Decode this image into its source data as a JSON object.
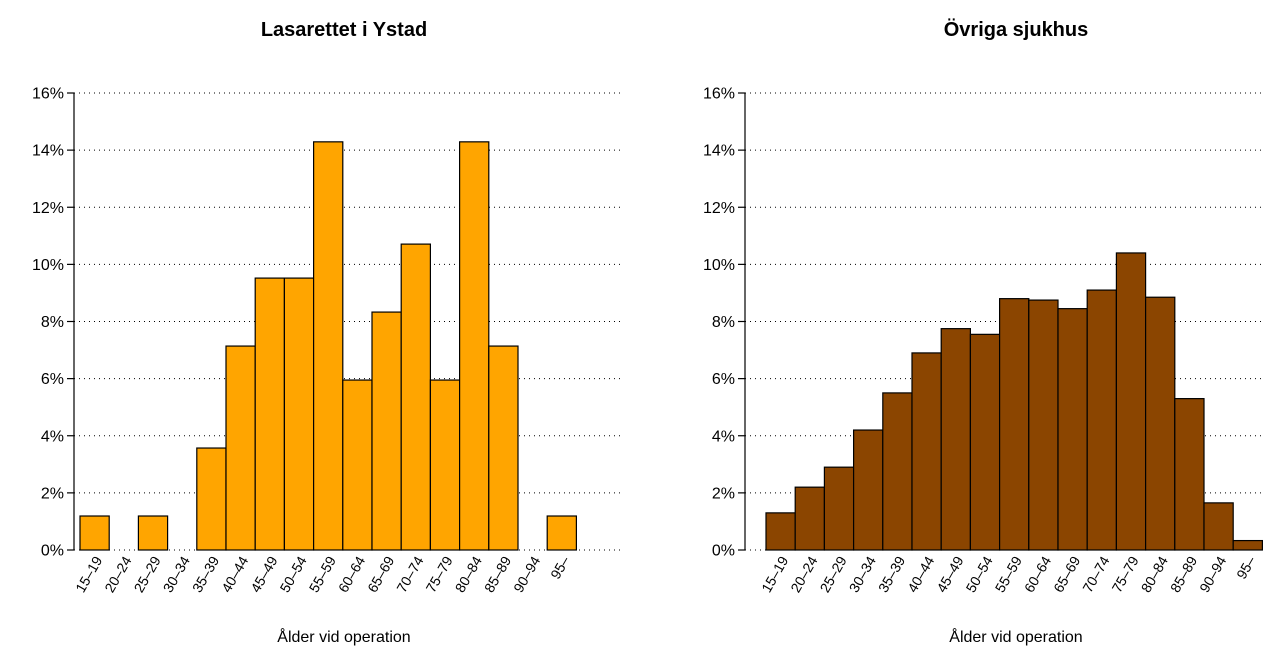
{
  "chart_data": [
    {
      "type": "bar",
      "title": "Lasarettet i Ystad",
      "xlabel": "Ålder vid operation",
      "ylabel": "",
      "ylim": [
        0,
        16
      ],
      "yticks": [
        "0%",
        "2%",
        "4%",
        "6%",
        "8%",
        "10%",
        "12%",
        "14%",
        "16%"
      ],
      "grid": true,
      "bar_color": "#FFA500",
      "categories": [
        "15–19",
        "20–24",
        "25–29",
        "30–34",
        "35–39",
        "40–44",
        "45–49",
        "50–54",
        "55–59",
        "60–64",
        "65–69",
        "70–74",
        "75–79",
        "80–84",
        "85–89",
        "90–94",
        "95–"
      ],
      "values": [
        1.19,
        0,
        1.19,
        0,
        3.57,
        7.14,
        9.52,
        9.52,
        14.29,
        5.95,
        8.33,
        10.71,
        5.95,
        14.29,
        7.14,
        0,
        1.19
      ]
    },
    {
      "type": "bar",
      "title": "Övriga sjukhus",
      "xlabel": "Ålder vid operation",
      "ylabel": "",
      "ylim": [
        0,
        16
      ],
      "yticks": [
        "0%",
        "2%",
        "4%",
        "6%",
        "8%",
        "10%",
        "12%",
        "14%",
        "16%"
      ],
      "grid": true,
      "bar_color": "#8B4500",
      "categories": [
        "15–19",
        "20–24",
        "25–29",
        "30–34",
        "35–39",
        "40–44",
        "45–49",
        "50–54",
        "55–59",
        "60–64",
        "65–69",
        "70–74",
        "75–79",
        "80–84",
        "85–89",
        "90–94",
        "95–"
      ],
      "values": [
        1.3,
        2.2,
        2.9,
        4.2,
        5.5,
        6.9,
        7.75,
        7.55,
        8.8,
        8.75,
        8.45,
        9.1,
        10.4,
        8.85,
        5.3,
        1.65,
        0.33
      ]
    }
  ]
}
